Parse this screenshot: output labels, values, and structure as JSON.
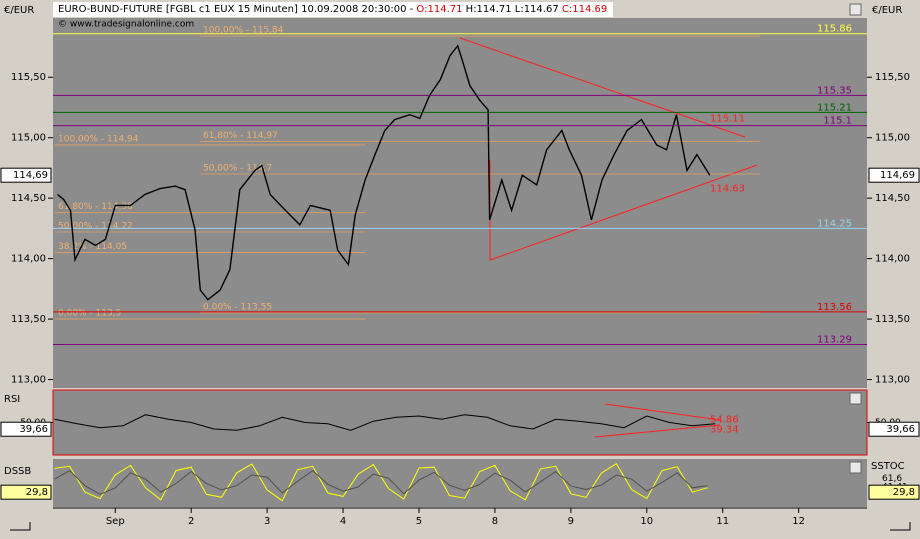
{
  "header": {
    "currency_left": "€/EUR",
    "currency_right": "€/EUR",
    "info": "EURO-BUND-FUTURE [FGBL c1 EUX  15 Minuten] 10.09.2008 20:30:00 - ",
    "open": "O:114.71",
    "high": "H:114.71",
    "low": "L:114.67",
    "close": "C:114.69",
    "watermark": "© www.tradesignalonline.com"
  },
  "chart_data": [
    {
      "type": "line",
      "xlim": [
        0.18,
        10.9
      ],
      "xticks": [
        {
          "value": 1,
          "label": "Sep"
        },
        2,
        3,
        4,
        5,
        {
          "value": 6,
          "label": "8"
        },
        {
          "value": 7,
          "label": "9"
        },
        {
          "value": 8,
          "label": "10"
        },
        {
          "value": 9,
          "label": "11"
        },
        {
          "value": 10,
          "label": "12"
        }
      ],
      "ylim": [
        112.93,
        115.99
      ],
      "yticks": [
        {
          "value": 113,
          "label": "113,00"
        },
        {
          "value": 113.5,
          "label": "113,50"
        },
        {
          "value": 114,
          "label": "114,00"
        },
        {
          "value": 114.5,
          "label": "114,50"
        },
        {
          "value": 115,
          "label": "115,00"
        },
        {
          "value": 115.5,
          "label": "115,50"
        }
      ],
      "series": [
        {
          "color": "#000000",
          "x": [
            0.24,
            0.32,
            0.41,
            0.47,
            0.6,
            0.74,
            0.87,
            1.0,
            1.2,
            1.39,
            1.59,
            1.79,
            1.92,
            2.05,
            2.12,
            2.22,
            2.38,
            2.51,
            2.64,
            2.84,
            2.93,
            3.04,
            3.24,
            3.43,
            3.57,
            3.83,
            3.93,
            4.07,
            4.16,
            4.29,
            4.42,
            4.55,
            4.68,
            4.88,
            5.01,
            5.14,
            5.28,
            5.41,
            5.51,
            5.57,
            5.67,
            5.8,
            5.91,
            5.93,
            6.09,
            6.22,
            6.36,
            6.55,
            6.68,
            6.88,
            6.98,
            7.14,
            7.27,
            7.41,
            7.57,
            7.74,
            7.93,
            8.13,
            8.26,
            8.39,
            8.53,
            8.66,
            8.83
          ],
          "values": [
            114.53,
            114.49,
            114.4,
            113.99,
            114.16,
            114.11,
            114.16,
            114.44,
            114.44,
            114.53,
            114.58,
            114.6,
            114.57,
            114.24,
            113.74,
            113.66,
            113.74,
            113.91,
            114.57,
            114.73,
            114.77,
            114.53,
            114.4,
            114.28,
            114.44,
            114.4,
            114.07,
            113.95,
            114.36,
            114.65,
            114.86,
            115.06,
            115.15,
            115.19,
            115.16,
            115.35,
            115.48,
            115.68,
            115.76,
            115.64,
            115.43,
            115.31,
            115.23,
            114.32,
            114.65,
            114.4,
            114.69,
            114.61,
            114.9,
            115.06,
            114.9,
            114.69,
            114.32,
            114.65,
            114.86,
            115.06,
            115.15,
            114.94,
            114.9,
            115.19,
            114.73,
            114.86,
            114.69
          ]
        }
      ],
      "levels": [
        {
          "value": 115.86,
          "color": "#ffff40"
        },
        {
          "value": 115.35,
          "color": "#800080"
        },
        {
          "value": 115.21,
          "color": "#006400"
        },
        {
          "value": 115.1,
          "color": "#800080"
        },
        {
          "value": 114.25,
          "color": "#9ad0f0"
        },
        {
          "value": 113.56,
          "color": "#e00000"
        },
        {
          "value": 113.29,
          "color": "#800080"
        }
      ],
      "fib": [
        {
          "label": "100,00% - 115,84",
          "value": 115.84
        },
        {
          "label": "61,80% - 114,97",
          "value": 114.97
        },
        {
          "label": "50,00% - 114,7",
          "value": 114.7
        },
        {
          "label": "0,00% - 113,55",
          "value": 113.55
        },
        {
          "label": "100,00% - 114,94",
          "value": 114.94
        },
        {
          "label": "61,80% - 114,38",
          "value": 114.38
        },
        {
          "label": "50,00% - 114,22",
          "value": 114.22
        },
        {
          "label": "38,2% - 114,05",
          "value": 114.05
        },
        {
          "label": "0,00% - 113,5",
          "value": 113.5
        }
      ],
      "trend_labels": [
        115.11,
        114.63
      ],
      "last_label": {
        "value": 114.69,
        "label": "114,69"
      }
    },
    {
      "type": "line",
      "title": "RSI",
      "ylim": [
        0,
        100
      ],
      "yticks": [
        {
          "value": 50,
          "label": "50,00"
        }
      ],
      "series": [
        {
          "color": "#000000",
          "x": [
            0.2,
            0.5,
            0.8,
            1.1,
            1.4,
            1.7,
            2.0,
            2.3,
            2.6,
            2.9,
            3.2,
            3.5,
            3.8,
            4.1,
            4.4,
            4.7,
            5.0,
            5.3,
            5.6,
            5.9,
            6.2,
            6.5,
            6.8,
            7.1,
            7.4,
            7.7,
            8.0,
            8.3,
            8.6,
            8.9
          ],
          "values": [
            55,
            48,
            42,
            45,
            62,
            55,
            50,
            40,
            38,
            45,
            58,
            50,
            48,
            38,
            52,
            58,
            60,
            55,
            62,
            58,
            45,
            40,
            55,
            52,
            48,
            42,
            60,
            50,
            45,
            48
          ]
        }
      ],
      "trend_labels": [
        54.86,
        39.34
      ],
      "last_label": {
        "value": 39.66,
        "label": "39,66"
      }
    },
    {
      "type": "line",
      "title": "DSSB",
      "right_title": "SSTOC",
      "ylim": [
        0,
        100
      ],
      "series": [
        {
          "color": "#ffff00",
          "x": [
            0.2,
            0.4,
            0.6,
            0.8,
            1.0,
            1.2,
            1.4,
            1.6,
            1.8,
            2.0,
            2.2,
            2.4,
            2.6,
            2.8,
            3.0,
            3.2,
            3.4,
            3.6,
            3.8,
            4.0,
            4.2,
            4.4,
            4.6,
            4.8,
            5.0,
            5.2,
            5.4,
            5.6,
            5.8,
            6.0,
            6.2,
            6.4,
            6.6,
            6.8,
            7.0,
            7.2,
            7.4,
            7.6,
            7.8,
            8.0,
            8.2,
            8.4,
            8.6,
            8.8
          ],
          "values": [
            85,
            90,
            30,
            15,
            70,
            92,
            40,
            12,
            80,
            88,
            25,
            18,
            75,
            95,
            35,
            10,
            82,
            90,
            28,
            20,
            72,
            94,
            38,
            14,
            86,
            88,
            22,
            16,
            78,
            92,
            33,
            12,
            84,
            90,
            26,
            18,
            74,
            96,
            36,
            15,
            80,
            89,
            30,
            40
          ]
        },
        {
          "color": "#505050",
          "x": [
            0.2,
            0.4,
            0.6,
            0.8,
            1.0,
            1.2,
            1.4,
            1.6,
            1.8,
            2.0,
            2.2,
            2.4,
            2.6,
            2.8,
            3.0,
            3.2,
            3.4,
            3.6,
            3.8,
            4.0,
            4.2,
            4.4,
            4.6,
            4.8,
            5.0,
            5.2,
            5.4,
            5.6,
            5.8,
            6.0,
            6.2,
            6.4,
            6.6,
            6.8,
            7.0,
            7.2,
            7.4,
            7.6,
            7.8,
            8.0,
            8.2,
            8.4,
            8.6,
            8.8
          ],
          "values": [
            60,
            80,
            45,
            25,
            40,
            75,
            60,
            30,
            50,
            78,
            50,
            35,
            45,
            70,
            65,
            28,
            55,
            80,
            48,
            32,
            42,
            72,
            62,
            26,
            58,
            76,
            46,
            34,
            48,
            74,
            58,
            30,
            54,
            78,
            44,
            36,
            46,
            70,
            60,
            32,
            52,
            75,
            40,
            45
          ]
        }
      ],
      "last_label": {
        "value": 29.8,
        "label": "29,8"
      },
      "right_labels": [
        {
          "value": 61.6,
          "label": "61,6"
        },
        {
          "value": 41.41,
          "label": "41,41"
        },
        {
          "value": 26.42,
          "label": "26,42"
        }
      ]
    }
  ]
}
